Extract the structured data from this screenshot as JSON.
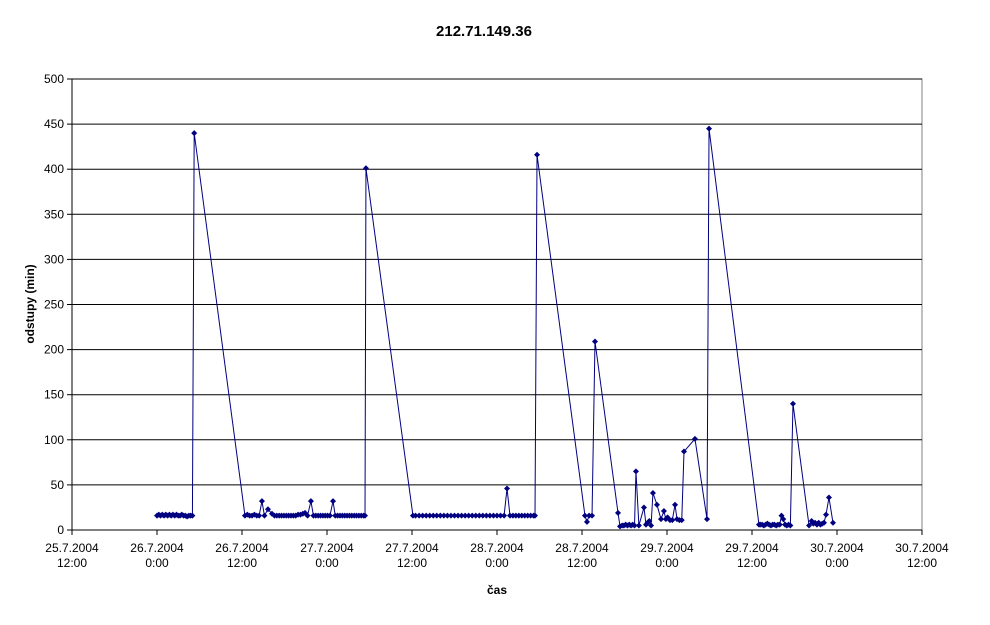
{
  "chart_data": {
    "type": "line",
    "title": "212.71.149.36",
    "x_label": "čas",
    "y_label": "odstupy (min)",
    "xlim": [
      "2004-07-25 12:00",
      "2004-07-30 12:00"
    ],
    "xticks": [
      {
        "value": "2004-07-25 12:00",
        "label": "25.7.2004 12:00"
      },
      {
        "value": "2004-07-26 00:00",
        "label": "26.7.2004 0:00"
      },
      {
        "value": "2004-07-26 12:00",
        "label": "26.7.2004 12:00"
      },
      {
        "value": "2004-07-27 00:00",
        "label": "27.7.2004 0:00"
      },
      {
        "value": "2004-07-27 12:00",
        "label": "27.7.2004 12:00"
      },
      {
        "value": "2004-07-28 00:00",
        "label": "28.7.2004 0:00"
      },
      {
        "value": "2004-07-28 12:00",
        "label": "28.7.2004 12:00"
      },
      {
        "value": "2004-07-29 00:00",
        "label": "29.7.2004 0:00"
      },
      {
        "value": "2004-07-29 12:00",
        "label": "29.7.2004 12:00"
      },
      {
        "value": "2004-07-30 00:00",
        "label": "30.7.2004 0:00"
      },
      {
        "value": "2004-07-30 12:00",
        "label": "30.7.2004 12:00"
      }
    ],
    "ylim": [
      0,
      500
    ],
    "yticks": [
      0,
      50,
      100,
      150,
      200,
      250,
      300,
      350,
      400,
      450,
      500
    ],
    "grid": true,
    "x": [
      "2004-07-26 00:00",
      "2004-07-26 00:15",
      "2004-07-26 00:30",
      "2004-07-26 00:45",
      "2004-07-26 01:00",
      "2004-07-26 01:15",
      "2004-07-26 01:30",
      "2004-07-26 01:45",
      "2004-07-26 02:00",
      "2004-07-26 02:15",
      "2004-07-26 02:30",
      "2004-07-26 02:45",
      "2004-07-26 03:00",
      "2004-07-26 03:15",
      "2004-07-26 03:30",
      "2004-07-26 03:45",
      "2004-07-26 04:00",
      "2004-07-26 04:15",
      "2004-07-26 04:30",
      "2004-07-26 04:45",
      "2004-07-26 05:00",
      "2004-07-26 05:15",
      "2004-07-26 12:25",
      "2004-07-26 12:45",
      "2004-07-26 13:05",
      "2004-07-26 13:25",
      "2004-07-26 13:45",
      "2004-07-26 14:05",
      "2004-07-26 14:25",
      "2004-07-26 14:49",
      "2004-07-26 15:10",
      "2004-07-26 15:40",
      "2004-07-26 16:14",
      "2004-07-26 16:35",
      "2004-07-26 16:55",
      "2004-07-26 17:15",
      "2004-07-26 17:35",
      "2004-07-26 17:55",
      "2004-07-26 18:15",
      "2004-07-26 18:35",
      "2004-07-26 18:55",
      "2004-07-26 19:15",
      "2004-07-26 19:35",
      "2004-07-26 19:55",
      "2004-07-26 20:15",
      "2004-07-26 20:35",
      "2004-07-26 20:54",
      "2004-07-26 21:15",
      "2004-07-26 21:44",
      "2004-07-26 22:05",
      "2004-07-26 22:25",
      "2004-07-26 22:45",
      "2004-07-26 23:05",
      "2004-07-26 23:25",
      "2004-07-26 23:45",
      "2004-07-27 00:05",
      "2004-07-27 00:25",
      "2004-07-27 00:51",
      "2004-07-27 01:10",
      "2004-07-27 01:30",
      "2004-07-27 01:50",
      "2004-07-27 02:10",
      "2004-07-27 02:30",
      "2004-07-27 02:50",
      "2004-07-27 03:10",
      "2004-07-27 03:30",
      "2004-07-27 03:50",
      "2004-07-27 04:10",
      "2004-07-27 04:30",
      "2004-07-27 04:50",
      "2004-07-27 05:10",
      "2004-07-27 05:22",
      "2004-07-27 05:30",
      "2004-07-27 12:08",
      "2004-07-27 12:30",
      "2004-07-27 13:00",
      "2004-07-27 13:30",
      "2004-07-27 14:00",
      "2004-07-27 14:30",
      "2004-07-27 15:00",
      "2004-07-27 15:30",
      "2004-07-27 16:00",
      "2004-07-27 16:30",
      "2004-07-27 17:00",
      "2004-07-27 17:30",
      "2004-07-27 18:00",
      "2004-07-27 18:30",
      "2004-07-27 19:00",
      "2004-07-27 19:30",
      "2004-07-27 20:00",
      "2004-07-27 20:30",
      "2004-07-27 21:00",
      "2004-07-27 21:30",
      "2004-07-27 22:00",
      "2004-07-27 22:30",
      "2004-07-27 23:00",
      "2004-07-27 23:30",
      "2004-07-28 00:00",
      "2004-07-28 00:30",
      "2004-07-28 01:00",
      "2004-07-28 01:25",
      "2004-07-28 01:50",
      "2004-07-28 02:15",
      "2004-07-28 02:40",
      "2004-07-28 03:05",
      "2004-07-28 03:30",
      "2004-07-28 03:55",
      "2004-07-28 04:20",
      "2004-07-28 04:45",
      "2004-07-28 05:10",
      "2004-07-28 05:22",
      "2004-07-28 05:39",
      "2004-07-28 12:25",
      "2004-07-28 12:42",
      "2004-07-28 13:00",
      "2004-07-28 13:25",
      "2004-07-28 13:50",
      "2004-07-28 17:05",
      "2004-07-28 17:22",
      "2004-07-28 17:40",
      "2004-07-28 17:55",
      "2004-07-28 18:10",
      "2004-07-28 18:25",
      "2004-07-28 18:40",
      "2004-07-28 18:55",
      "2004-07-28 19:10",
      "2004-07-28 19:25",
      "2004-07-28 19:37",
      "2004-07-28 20:02",
      "2004-07-28 20:45",
      "2004-07-28 21:02",
      "2004-07-28 21:15",
      "2004-07-28 21:30",
      "2004-07-28 21:45",
      "2004-07-28 22:01",
      "2004-07-28 22:35",
      "2004-07-28 23:09",
      "2004-07-28 23:34",
      "2004-07-28 23:50",
      "2004-07-29 00:05",
      "2004-07-29 00:25",
      "2004-07-29 00:45",
      "2004-07-29 01:08",
      "2004-07-29 01:25",
      "2004-07-29 01:45",
      "2004-07-29 02:05",
      "2004-07-29 02:24",
      "2004-07-29 03:57",
      "2004-07-29 05:39",
      "2004-07-29 05:56",
      "2004-07-29 12:59",
      "2004-07-29 13:10",
      "2004-07-29 13:25",
      "2004-07-29 13:40",
      "2004-07-29 13:55",
      "2004-07-29 14:10",
      "2004-07-29 14:25",
      "2004-07-29 14:40",
      "2004-07-29 14:55",
      "2004-07-29 15:10",
      "2004-07-29 15:25",
      "2004-07-29 15:40",
      "2004-07-29 15:55",
      "2004-07-29 16:10",
      "2004-07-29 16:25",
      "2004-07-29 16:40",
      "2004-07-29 16:55",
      "2004-07-29 17:10",
      "2004-07-29 17:25",
      "2004-07-29 17:47",
      "2004-07-29 20:03",
      "2004-07-29 20:25",
      "2004-07-29 20:40",
      "2004-07-29 20:55",
      "2004-07-29 21:10",
      "2004-07-29 21:25",
      "2004-07-29 21:40",
      "2004-07-29 21:55",
      "2004-07-29 22:10",
      "2004-07-29 22:27",
      "2004-07-29 22:52",
      "2004-07-29 23:26"
    ],
    "series": [
      {
        "color": "#000080",
        "values": [
          16,
          17,
          16,
          17,
          16,
          17,
          16,
          17,
          16,
          17,
          16,
          17,
          16,
          16,
          17,
          16,
          16,
          15,
          16,
          16,
          16,
          440,
          16,
          17,
          16,
          16,
          17,
          16,
          16,
          32,
          16,
          23,
          18,
          16,
          16,
          16,
          16,
          16,
          16,
          16,
          16,
          16,
          16,
          17,
          17,
          18,
          19,
          16,
          32,
          16,
          16,
          16,
          16,
          16,
          16,
          16,
          16,
          32,
          16,
          16,
          16,
          16,
          16,
          16,
          16,
          16,
          16,
          16,
          16,
          16,
          16,
          16,
          401,
          16,
          16,
          16,
          16,
          16,
          16,
          16,
          16,
          16,
          16,
          16,
          16,
          16,
          16,
          16,
          16,
          16,
          16,
          16,
          16,
          16,
          16,
          16,
          16,
          16,
          16,
          16,
          46,
          16,
          16,
          16,
          16,
          16,
          16,
          16,
          16,
          16,
          16,
          416,
          16,
          9,
          16,
          16,
          209,
          19,
          4,
          5,
          5,
          6,
          5,
          6,
          5,
          6,
          5,
          65,
          5,
          25,
          6,
          8,
          10,
          5,
          41,
          28,
          12,
          21,
          12,
          14,
          11,
          11,
          28,
          12,
          11,
          11,
          87,
          101,
          12,
          445,
          6,
          6,
          6,
          5,
          6,
          7,
          6,
          5,
          6,
          6,
          5,
          6,
          6,
          16,
          12,
          6,
          5,
          6,
          5,
          140,
          5,
          10,
          7,
          8,
          6,
          8,
          6,
          7,
          8,
          17,
          36,
          8
        ]
      }
    ]
  }
}
